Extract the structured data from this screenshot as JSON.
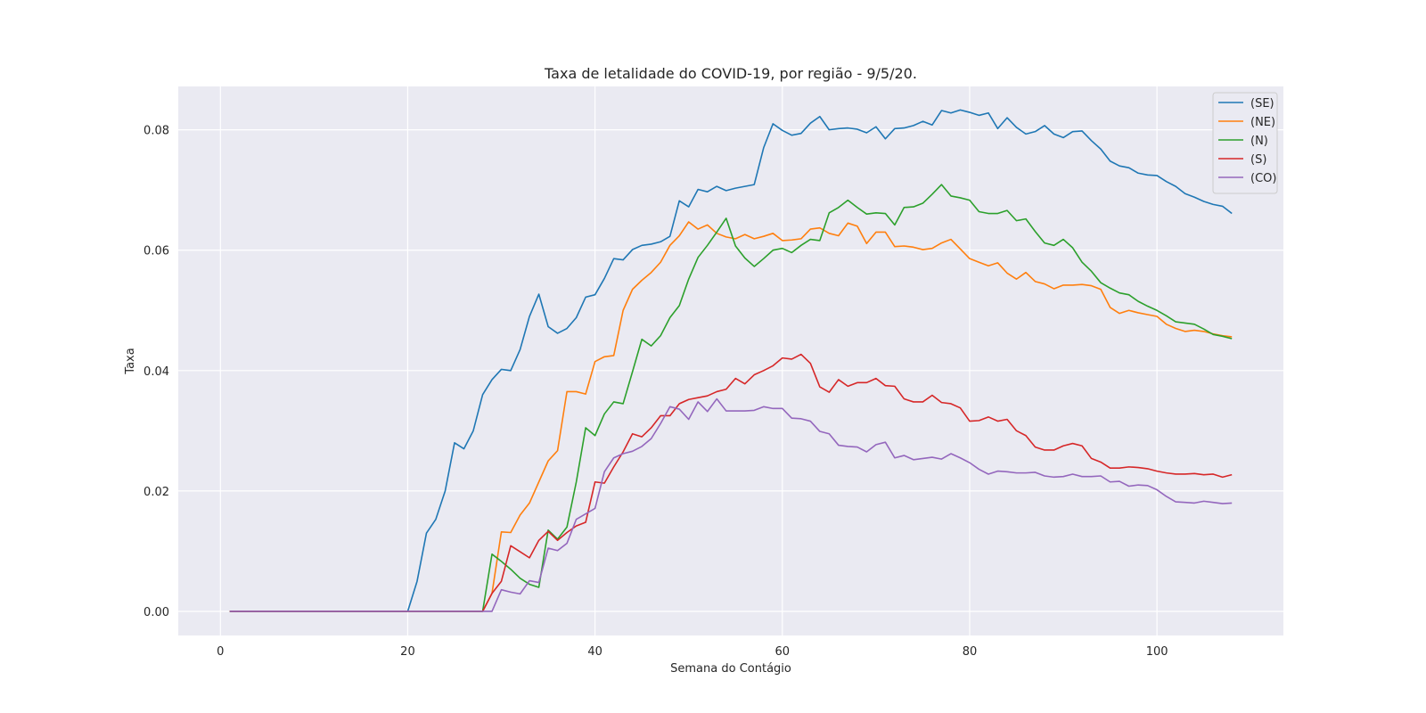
{
  "chart_data": {
    "type": "line",
    "title": "Taxa de letalidade do COVID-19, por região - 9/5/20.",
    "xlabel": "Semana do Contágio",
    "ylabel": "Taxa",
    "xlim": [
      -4.5,
      113.5
    ],
    "ylim": [
      -0.004,
      0.0872
    ],
    "x_ticks": [
      0,
      20,
      40,
      60,
      80,
      100
    ],
    "x_tick_labels": [
      "0",
      "20",
      "40",
      "60",
      "80",
      "100"
    ],
    "y_ticks": [
      0.0,
      0.02,
      0.04,
      0.06,
      0.08
    ],
    "y_tick_labels": [
      "0.00",
      "0.02",
      "0.04",
      "0.06",
      "0.08"
    ],
    "grid": true,
    "legend_position": "top-right",
    "x_range": [
      1,
      108
    ],
    "series": [
      {
        "name": "(SE)",
        "color": "#1f77b4",
        "values": [
          0,
          0,
          0,
          0,
          0,
          0,
          0,
          0,
          0,
          0,
          0,
          0,
          0,
          0,
          0,
          0,
          0,
          0,
          0,
          0,
          0.005,
          0.013,
          0.0153,
          0.02,
          0.028,
          0.027,
          0.03,
          0.036,
          0.0385,
          0.0402,
          0.04,
          0.0435,
          0.049,
          0.0527,
          0.0473,
          0.0462,
          0.047,
          0.0488,
          0.0522,
          0.0526,
          0.0553,
          0.0586,
          0.0584,
          0.0601,
          0.0608,
          0.061,
          0.0614,
          0.0623,
          0.0682,
          0.0672,
          0.0701,
          0.0697,
          0.0706,
          0.0699,
          0.0703,
          0.0706,
          0.0709,
          0.077,
          0.081,
          0.0799,
          0.0791,
          0.0794,
          0.0811,
          0.0822,
          0.08,
          0.0802,
          0.0803,
          0.0801,
          0.0795,
          0.0805,
          0.0785,
          0.0802,
          0.0803,
          0.0807,
          0.0814,
          0.0808,
          0.0832,
          0.0828,
          0.0833,
          0.0829,
          0.0824,
          0.0828,
          0.0802,
          0.082,
          0.0804,
          0.0793,
          0.0797,
          0.0807,
          0.0793,
          0.0787,
          0.0797,
          0.0798,
          0.0782,
          0.0768,
          0.0748,
          0.074,
          0.0737,
          0.0728,
          0.0725,
          0.0724,
          0.0714,
          0.0706,
          0.0694,
          0.0688,
          0.0681,
          0.0676,
          0.0673,
          0.0661
        ]
      },
      {
        "name": "(NE)",
        "color": "#ff7f0e",
        "values": [
          0,
          0,
          0,
          0,
          0,
          0,
          0,
          0,
          0,
          0,
          0,
          0,
          0,
          0,
          0,
          0,
          0,
          0,
          0,
          0,
          0,
          0,
          0,
          0,
          0,
          0,
          0,
          0,
          0.003,
          0.0132,
          0.0131,
          0.016,
          0.018,
          0.0215,
          0.025,
          0.0267,
          0.0365,
          0.0365,
          0.0361,
          0.0415,
          0.0423,
          0.0425,
          0.05,
          0.0535,
          0.055,
          0.0563,
          0.058,
          0.0608,
          0.0624,
          0.0647,
          0.0635,
          0.0642,
          0.0628,
          0.0622,
          0.0619,
          0.0626,
          0.0619,
          0.0623,
          0.0628,
          0.0616,
          0.0617,
          0.0619,
          0.0635,
          0.0637,
          0.0628,
          0.0624,
          0.0645,
          0.064,
          0.0611,
          0.063,
          0.063,
          0.0606,
          0.0607,
          0.0605,
          0.0601,
          0.0603,
          0.0612,
          0.0618,
          0.0602,
          0.0586,
          0.058,
          0.0574,
          0.0579,
          0.0562,
          0.0552,
          0.0563,
          0.0548,
          0.0544,
          0.0536,
          0.0542,
          0.0542,
          0.0543,
          0.0541,
          0.0535,
          0.0505,
          0.0495,
          0.05,
          0.0496,
          0.0493,
          0.049,
          0.0477,
          0.047,
          0.0465,
          0.0467,
          0.0465,
          0.0461,
          0.0458,
          0.0456
        ]
      },
      {
        "name": "(N)",
        "color": "#2ca02c",
        "values": [
          0,
          0,
          0,
          0,
          0,
          0,
          0,
          0,
          0,
          0,
          0,
          0,
          0,
          0,
          0,
          0,
          0,
          0,
          0,
          0,
          0,
          0,
          0,
          0,
          0,
          0,
          0,
          0,
          0.0095,
          0.0083,
          0.007,
          0.0055,
          0.0045,
          0.004,
          0.0135,
          0.012,
          0.014,
          0.0215,
          0.0305,
          0.0292,
          0.0328,
          0.0348,
          0.0345,
          0.0398,
          0.0452,
          0.0441,
          0.0458,
          0.0488,
          0.0508,
          0.0552,
          0.0588,
          0.0608,
          0.063,
          0.0653,
          0.0607,
          0.0587,
          0.0573,
          0.0586,
          0.06,
          0.0603,
          0.0596,
          0.0608,
          0.0618,
          0.0616,
          0.0662,
          0.0671,
          0.0683,
          0.0671,
          0.066,
          0.0662,
          0.0661,
          0.0642,
          0.0671,
          0.0672,
          0.0678,
          0.0693,
          0.0709,
          0.069,
          0.0687,
          0.0683,
          0.0664,
          0.0661,
          0.0661,
          0.0666,
          0.0649,
          0.0652,
          0.0631,
          0.0612,
          0.0608,
          0.0618,
          0.0604,
          0.058,
          0.0565,
          0.0546,
          0.0537,
          0.0529,
          0.0526,
          0.0515,
          0.0507,
          0.05,
          0.0491,
          0.0481,
          0.0479,
          0.0477,
          0.0469,
          0.046,
          0.0457,
          0.0453
        ]
      },
      {
        "name": "(S)",
        "color": "#d62728",
        "values": [
          0,
          0,
          0,
          0,
          0,
          0,
          0,
          0,
          0,
          0,
          0,
          0,
          0,
          0,
          0,
          0,
          0,
          0,
          0,
          0,
          0,
          0,
          0,
          0,
          0,
          0,
          0,
          0,
          0.003,
          0.005,
          0.0109,
          0.0099,
          0.0089,
          0.0118,
          0.0133,
          0.0118,
          0.0131,
          0.0142,
          0.0148,
          0.0215,
          0.0213,
          0.024,
          0.0265,
          0.0295,
          0.029,
          0.0305,
          0.0325,
          0.0325,
          0.0345,
          0.0352,
          0.0355,
          0.0358,
          0.0365,
          0.0369,
          0.0387,
          0.0378,
          0.0393,
          0.04,
          0.0408,
          0.0421,
          0.0419,
          0.0427,
          0.0412,
          0.0373,
          0.0364,
          0.0385,
          0.0374,
          0.038,
          0.038,
          0.0387,
          0.0375,
          0.0374,
          0.0353,
          0.0348,
          0.0348,
          0.0359,
          0.0347,
          0.0345,
          0.0338,
          0.0316,
          0.0317,
          0.0323,
          0.0316,
          0.0319,
          0.03,
          0.0292,
          0.0273,
          0.0268,
          0.0268,
          0.0275,
          0.0279,
          0.0275,
          0.0254,
          0.0248,
          0.0238,
          0.0238,
          0.024,
          0.0239,
          0.0237,
          0.0233,
          0.023,
          0.0228,
          0.0228,
          0.0229,
          0.0227,
          0.0228,
          0.0223,
          0.0227
        ]
      },
      {
        "name": "(CO)",
        "color": "#9467bd",
        "values": [
          0,
          0,
          0,
          0,
          0,
          0,
          0,
          0,
          0,
          0,
          0,
          0,
          0,
          0,
          0,
          0,
          0,
          0,
          0,
          0,
          0,
          0,
          0,
          0,
          0,
          0,
          0,
          0,
          0,
          0.0036,
          0.0032,
          0.0029,
          0.0051,
          0.0048,
          0.0105,
          0.0101,
          0.0113,
          0.0153,
          0.0162,
          0.0171,
          0.0232,
          0.0255,
          0.0262,
          0.0266,
          0.0274,
          0.0287,
          0.0312,
          0.034,
          0.0336,
          0.0319,
          0.0348,
          0.0332,
          0.0353,
          0.0333,
          0.0333,
          0.0333,
          0.0334,
          0.034,
          0.0337,
          0.0337,
          0.0321,
          0.032,
          0.0316,
          0.0299,
          0.0295,
          0.0276,
          0.0274,
          0.0273,
          0.0265,
          0.0277,
          0.0281,
          0.0255,
          0.0259,
          0.0252,
          0.0254,
          0.0256,
          0.0253,
          0.0262,
          0.0255,
          0.0247,
          0.0236,
          0.0228,
          0.0233,
          0.0232,
          0.023,
          0.023,
          0.0231,
          0.0225,
          0.0223,
          0.0224,
          0.0228,
          0.0224,
          0.0224,
          0.0225,
          0.0215,
          0.0216,
          0.0208,
          0.021,
          0.0209,
          0.0202,
          0.0191,
          0.0182,
          0.0181,
          0.018,
          0.0183,
          0.0181,
          0.0179,
          0.018
        ]
      }
    ]
  }
}
